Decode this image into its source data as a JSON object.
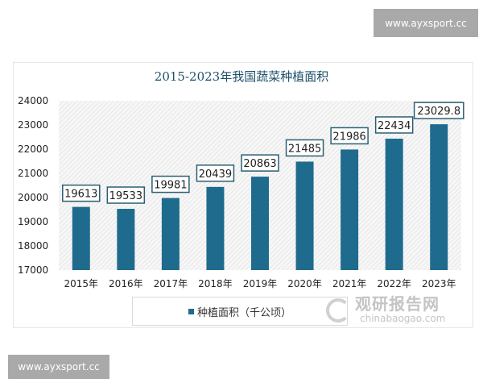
{
  "badges": {
    "top": "www.ayxsport.cc",
    "bottom": "www.ayxsport.cc"
  },
  "watermark": {
    "cn": "观研报告网",
    "en": "chinabaogao.com"
  },
  "chart_data": {
    "type": "bar",
    "title": "2015-2023年我国蔬菜种植面积",
    "categories": [
      "2015年",
      "2016年",
      "2017年",
      "2018年",
      "2019年",
      "2020年",
      "2021年",
      "2022年",
      "2023年"
    ],
    "series": [
      {
        "name": "种植面积（千公顷）",
        "values": [
          19613,
          19533,
          19981,
          20439,
          20863,
          21485,
          21986,
          22434,
          23029.8
        ],
        "labels": [
          "19613",
          "19533",
          "19981",
          "20439",
          "20863",
          "21485",
          "21986",
          "22434",
          "23029.8"
        ]
      }
    ],
    "ylim": [
      17000,
      24000
    ],
    "yticks": [
      "17000",
      "18000",
      "19000",
      "20000",
      "21000",
      "22000",
      "23000",
      "24000"
    ],
    "grid": false,
    "legend": "bottom",
    "colors": {
      "bar": "#1f6b8e",
      "label_border": "#2a5f73",
      "title": "#1d4f6a"
    }
  }
}
